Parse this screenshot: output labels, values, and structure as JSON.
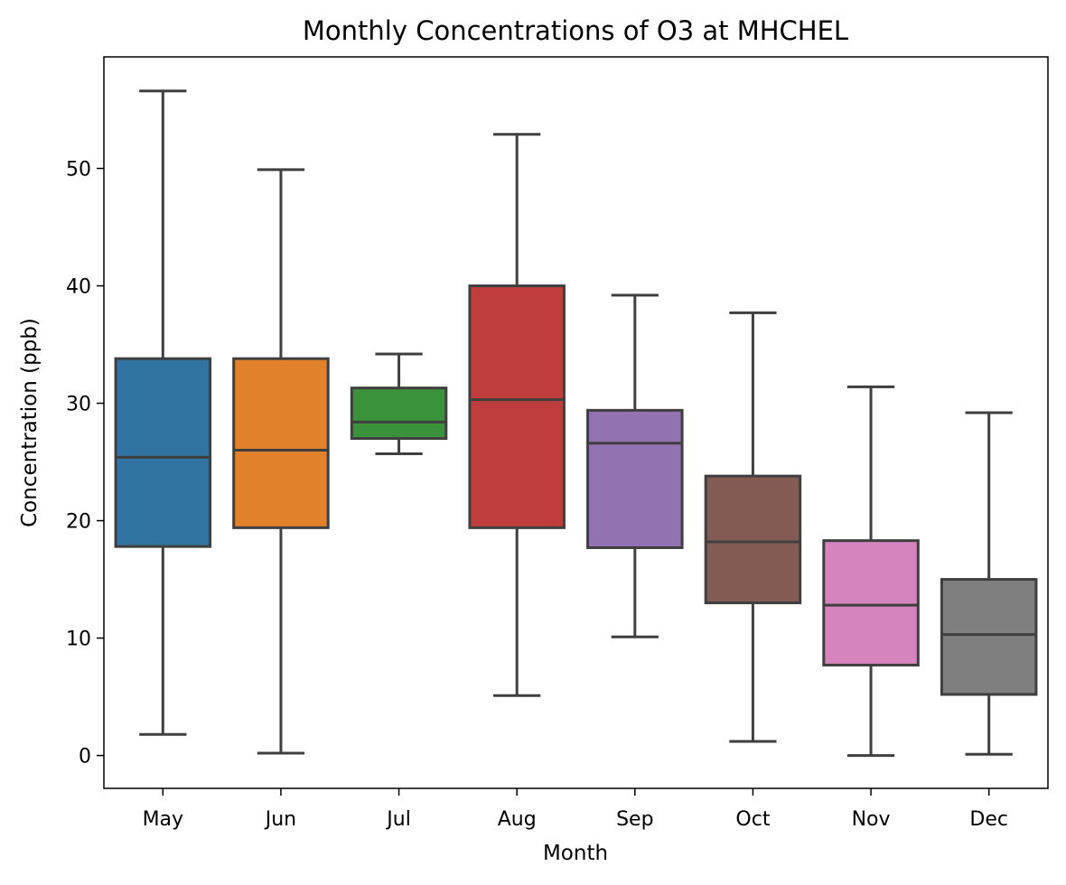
{
  "chart_data": {
    "type": "box",
    "title": "Monthly Concentrations of O3 at MHCHEL",
    "xlabel": "Month",
    "ylabel": "Concentration (ppb)",
    "ylim": [
      -2.8,
      59.5
    ],
    "yticks": [
      0,
      10,
      20,
      30,
      40,
      50
    ],
    "grid": false,
    "categories": [
      "May",
      "Jun",
      "Jul",
      "Aug",
      "Sep",
      "Oct",
      "Nov",
      "Dec"
    ],
    "boxes": [
      {
        "category": "May",
        "whisker_low": 1.8,
        "q1": 17.8,
        "median": 25.4,
        "q3": 33.8,
        "whisker_high": 56.6,
        "color": "#3274a1"
      },
      {
        "category": "Jun",
        "whisker_low": 0.2,
        "q1": 19.4,
        "median": 26.0,
        "q3": 33.8,
        "whisker_high": 49.9,
        "color": "#e1812c"
      },
      {
        "category": "Jul",
        "whisker_low": 25.7,
        "q1": 27.0,
        "median": 28.4,
        "q3": 31.3,
        "whisker_high": 34.2,
        "color": "#3a923a"
      },
      {
        "category": "Aug",
        "whisker_low": 5.1,
        "q1": 19.4,
        "median": 30.3,
        "q3": 40.0,
        "whisker_high": 52.9,
        "color": "#c03d3e"
      },
      {
        "category": "Sep",
        "whisker_low": 10.1,
        "q1": 17.7,
        "median": 26.6,
        "q3": 29.4,
        "whisker_high": 39.2,
        "color": "#9372b2"
      },
      {
        "category": "Oct",
        "whisker_low": 1.2,
        "q1": 13.0,
        "median": 18.2,
        "q3": 23.8,
        "whisker_high": 37.7,
        "color": "#845b53"
      },
      {
        "category": "Nov",
        "whisker_low": 0.0,
        "q1": 7.7,
        "median": 12.8,
        "q3": 18.3,
        "whisker_high": 31.4,
        "color": "#d684bd"
      },
      {
        "category": "Dec",
        "whisker_low": 0.1,
        "q1": 5.2,
        "median": 10.3,
        "q3": 15.0,
        "whisker_high": 29.2,
        "color": "#7f7f7f"
      }
    ]
  }
}
